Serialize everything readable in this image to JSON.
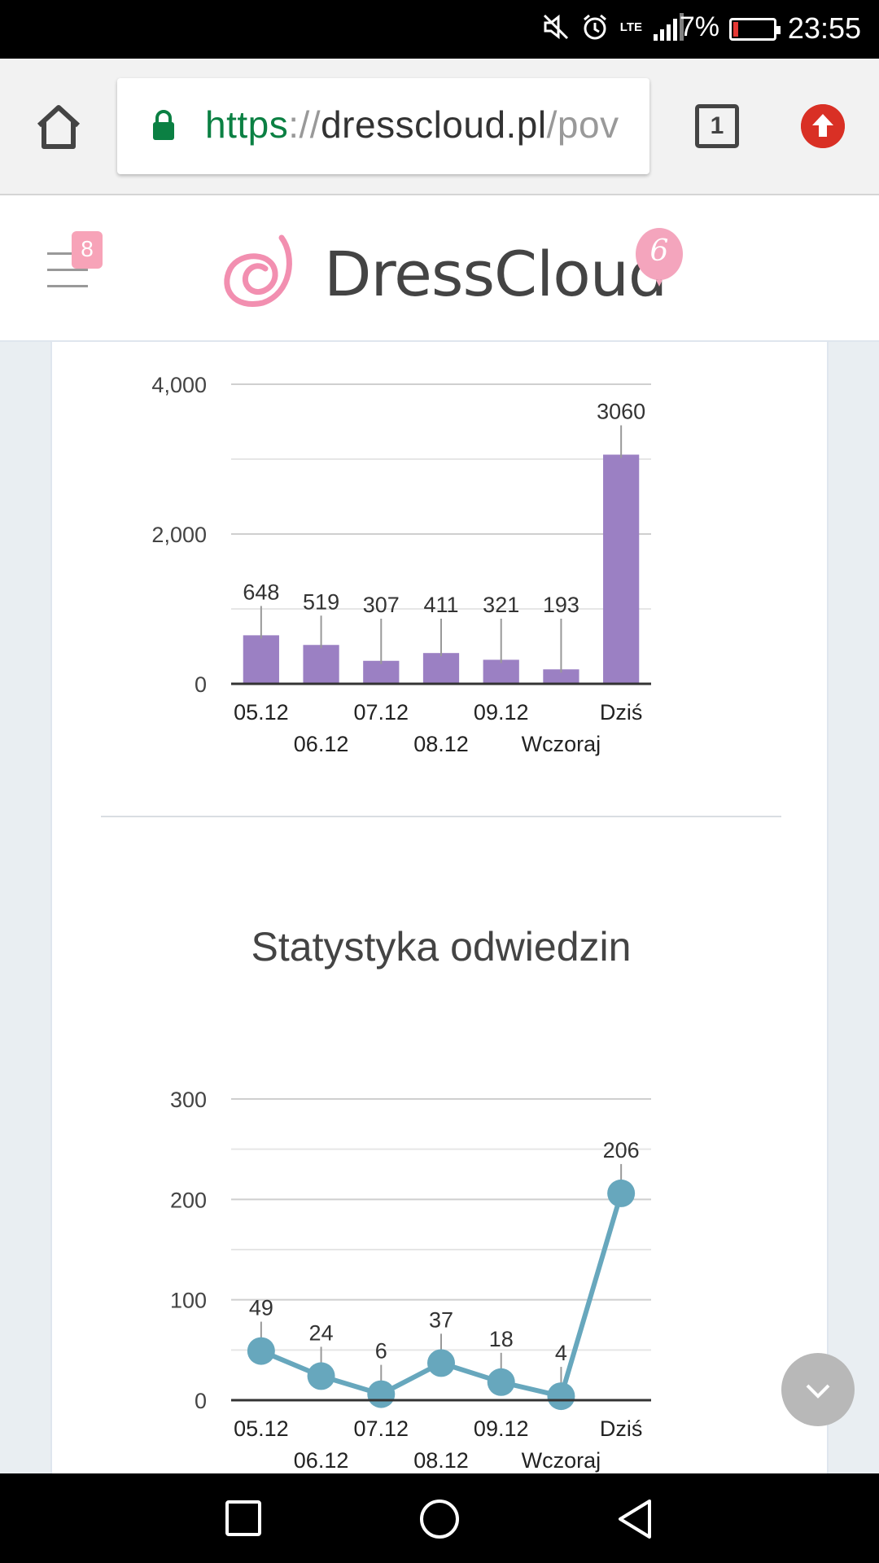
{
  "status_bar": {
    "battery_pct": "7%",
    "battery_level": 0.07,
    "time": "23:55",
    "network": "LTE"
  },
  "browser": {
    "url_scheme": "https",
    "url_sep": "://",
    "url_host": "dresscloud.pl",
    "url_path": "/pov",
    "tab_count": "1"
  },
  "header": {
    "menu_badge": "8",
    "brand": "DressCloud",
    "balloon_number": "6"
  },
  "section2": {
    "title": "Statystyka odwiedzin"
  },
  "colors": {
    "bar": "#9b80c3",
    "line": "#67a7bd",
    "badge": "#f7a3b8",
    "secure": "#0b8043"
  },
  "chart_data": [
    {
      "type": "bar",
      "categories": [
        "05.12",
        "06.12",
        "07.12",
        "08.12",
        "09.12",
        "Wczoraj",
        "Dziś"
      ],
      "values": [
        648,
        519,
        307,
        411,
        321,
        193,
        3060
      ],
      "ylim": [
        0,
        4000
      ],
      "yticks": [
        "0",
        "2,000",
        "4,000"
      ],
      "grid": true
    },
    {
      "type": "line",
      "categories": [
        "05.12",
        "06.12",
        "07.12",
        "08.12",
        "09.12",
        "Wczoraj",
        "Dziś"
      ],
      "values": [
        49,
        24,
        6,
        37,
        18,
        4,
        206
      ],
      "ylim": [
        0,
        300
      ],
      "yticks": [
        "0",
        "100",
        "200",
        "300"
      ],
      "grid": true
    }
  ]
}
